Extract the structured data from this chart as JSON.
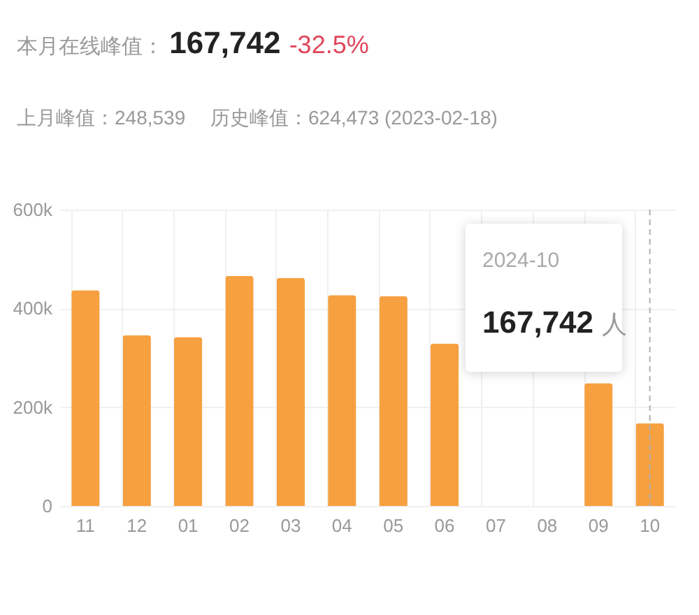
{
  "chart_data": {
    "type": "bar",
    "title": "本月在线峰值： 167,742 -32.5%",
    "subtitle": "上月峰值：248,539　 历史峰值：624,473 (2023-02-18)",
    "categories": [
      "11",
      "12",
      "01",
      "02",
      "03",
      "04",
      "05",
      "06",
      "07",
      "08",
      "09",
      "10"
    ],
    "values": [
      437000,
      346000,
      342000,
      466000,
      462000,
      427000,
      425000,
      329000,
      null,
      null,
      248539,
      167742
    ],
    "color": "#f7a040",
    "ylim": [
      0,
      600000
    ],
    "yticks": [
      0,
      {
        "value": 200000,
        "label": "200k"
      },
      {
        "value": 400000,
        "label": "400k"
      },
      {
        "value": 600000,
        "label": "600k"
      }
    ],
    "grid": true,
    "ref_lines": [
      {
        "axis": "x",
        "value": "10",
        "line_style": "dashed",
        "color": "#b0b0b0"
      }
    ],
    "annotations": [
      "2024-10",
      "167,742 人"
    ]
  }
}
